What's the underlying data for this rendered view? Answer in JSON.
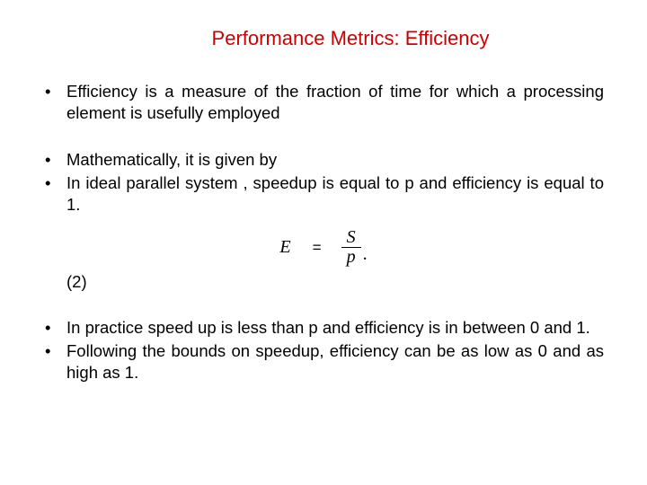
{
  "title": "Performance Metrics: Efficiency",
  "colors": {
    "title": "#cc0000",
    "text": "#000000",
    "bg": "#ffffff"
  },
  "fonts": {
    "body": "Arial",
    "math": "Times New Roman",
    "title_size": 22,
    "body_size": 18.5,
    "math_size": 20
  },
  "bullets_a": [
    "Efficiency is a measure of the fraction of time for which a processing element is usefully employed"
  ],
  "bullets_b": [
    "Mathematically, it is given by",
    "In ideal parallel system , speedup is equal to p and efficiency is equal to 1."
  ],
  "equation": {
    "lhs": "E",
    "eq": "=",
    "num": "S",
    "den": "p",
    "trail": "."
  },
  "eq_number": "(2)",
  "bullets_c": [
    "In practice speed up is less than p and efficiency is in between 0 and 1.",
    "Following the bounds on speedup, efficiency can be as low as 0 and as high as 1."
  ]
}
